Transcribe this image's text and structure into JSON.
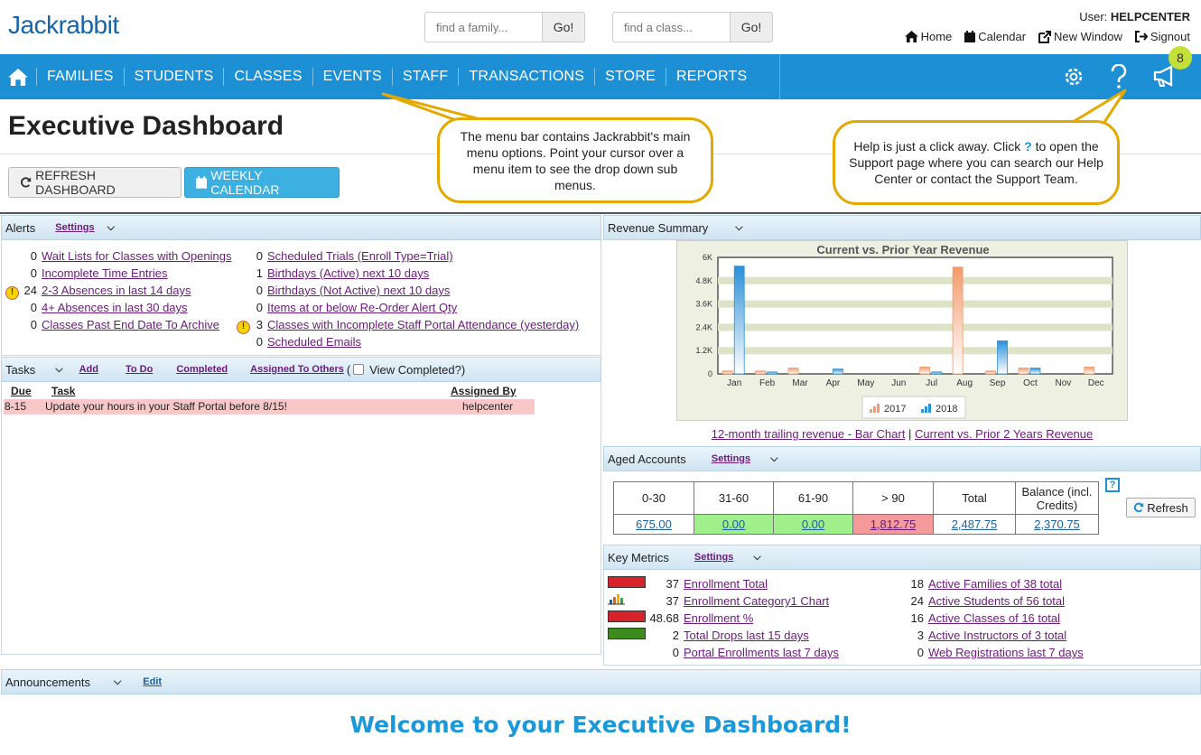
{
  "header": {
    "logo": "Jackrabbit",
    "family_search": {
      "placeholder": "find a family...",
      "button": "Go!"
    },
    "class_search": {
      "placeholder": "find a class...",
      "button": "Go!"
    },
    "user_prefix": "User: ",
    "user_name": "HELPCENTER",
    "links": {
      "home": "Home",
      "calendar": "Calendar",
      "new_window": "New Window",
      "signout": "Signout"
    }
  },
  "nav": {
    "items": [
      "FAMILIES",
      "STUDENTS",
      "CLASSES",
      "EVENTS",
      "STAFF",
      "TRANSACTIONS",
      "STORE",
      "REPORTS"
    ],
    "badge": "8"
  },
  "page": {
    "title": "Executive Dashboard",
    "refresh_button": "REFRESH DASHBOARD",
    "calendar_button": "WEEKLY CALENDAR"
  },
  "callouts": {
    "menu": "The menu bar contains Jackrabbit's main menu options. Point your cursor over a menu item to see the drop down sub menus.",
    "help_pre": "Help is just a click away. Click ",
    "help_q": "?",
    "help_post": " to open the Support page where you can search our Help Center or contact the Support Team."
  },
  "alerts": {
    "title": "Alerts",
    "settings": "Settings",
    "left": [
      {
        "count": "0",
        "label": "Wait Lists for Classes with Openings",
        "warn": false
      },
      {
        "count": "0",
        "label": "Incomplete Time Entries",
        "warn": false
      },
      {
        "count": "24",
        "label": "2-3 Absences in last 14 days",
        "warn": true
      },
      {
        "count": "0",
        "label": "4+ Absences in last 30 days",
        "warn": false
      },
      {
        "count": "0",
        "label": "Classes Past End Date To Archive",
        "warn": false
      }
    ],
    "right": [
      {
        "count": "0",
        "label": "Scheduled Trials (Enroll Type=Trial)",
        "warn": false
      },
      {
        "count": "1",
        "label": "Birthdays (Active) next 10 days",
        "warn": false
      },
      {
        "count": "0",
        "label": "Birthdays (Not Active) next 10 days",
        "warn": false
      },
      {
        "count": "0",
        "label": "Items at or below Re-Order Alert Qty",
        "warn": false
      },
      {
        "count": "3",
        "label": "Classes with Incomplete Staff Portal Attendance (yesterday)",
        "warn": true
      },
      {
        "count": "0",
        "label": "Scheduled Emails",
        "warn": false
      }
    ]
  },
  "tasks": {
    "title": "Tasks",
    "add": "Add",
    "todo": "To Do",
    "completed": "Completed",
    "assigned_to_others": "Assigned To Others",
    "paren": "(",
    "view_completed": "View Completed?)",
    "columns": {
      "due": "Due",
      "task": "Task",
      "assigned_by": "Assigned By"
    },
    "rows": [
      {
        "due": "8-15",
        "task": "Update your hours in your Staff Portal before 8/15!",
        "assigned_by": "helpcenter"
      }
    ]
  },
  "revenue": {
    "title": "Revenue Summary",
    "link1": "12-month trailing revenue - Bar Chart",
    "sep": "|",
    "link2": "Current vs. Prior 2 Years Revenue"
  },
  "chart_data": {
    "type": "bar",
    "title": "Current vs. Prior Year Revenue",
    "categories": [
      "Jan",
      "Feb",
      "Mar",
      "Apr",
      "May",
      "Jun",
      "Jul",
      "Aug",
      "Sep",
      "Oct",
      "Nov",
      "Dec"
    ],
    "series": [
      {
        "name": "2017",
        "color": "#f39a6b",
        "values": [
          150,
          150,
          300,
          0,
          0,
          0,
          350,
          5500,
          150,
          300,
          0,
          350
        ]
      },
      {
        "name": "2018",
        "color": "#2a90d8",
        "values": [
          5550,
          100,
          0,
          250,
          0,
          0,
          100,
          0,
          1700,
          300,
          0,
          0
        ]
      }
    ],
    "ylim": [
      0,
      6000
    ],
    "yticks": [
      "0",
      "1.2K",
      "2.4K",
      "3.6K",
      "4.8K",
      "6K"
    ],
    "legend": "bottom"
  },
  "aged": {
    "title": "Aged Accounts",
    "settings": "Settings",
    "help": "?",
    "refresh": "Refresh",
    "headers": [
      "0-30",
      "31-60",
      "61-90",
      "> 90",
      "Total",
      "Balance (incl. Credits)"
    ],
    "values": [
      "675.00",
      "0.00",
      "0.00",
      "1,812.75",
      "2,487.75",
      "2,370.75"
    ]
  },
  "metrics": {
    "title": "Key Metrics",
    "settings": "Settings",
    "left": [
      {
        "value": "37",
        "label": "Enrollment Total",
        "indicator": "red"
      },
      {
        "value": "37",
        "label": "Enrollment Category1 Chart",
        "indicator": "chart"
      },
      {
        "value": "48.68",
        "label": "Enrollment %",
        "indicator": "red"
      },
      {
        "value": "2",
        "label": "Total Drops last 15 days",
        "indicator": "green"
      },
      {
        "value": "0",
        "label": "Portal Enrollments last 7 days",
        "indicator": "none"
      }
    ],
    "right": [
      {
        "value": "18",
        "label": "Active Families of 38 total"
      },
      {
        "value": "24",
        "label": "Active Students of 56 total"
      },
      {
        "value": "16",
        "label": "Active Classes of 16 total"
      },
      {
        "value": "3",
        "label": "Active Instructors of 3 total"
      },
      {
        "value": "0",
        "label": "Web Registrations last 7 days"
      }
    ]
  },
  "announcements": {
    "title": "Announcements",
    "edit": "Edit",
    "welcome": "Welcome to your Executive Dashboard!"
  }
}
